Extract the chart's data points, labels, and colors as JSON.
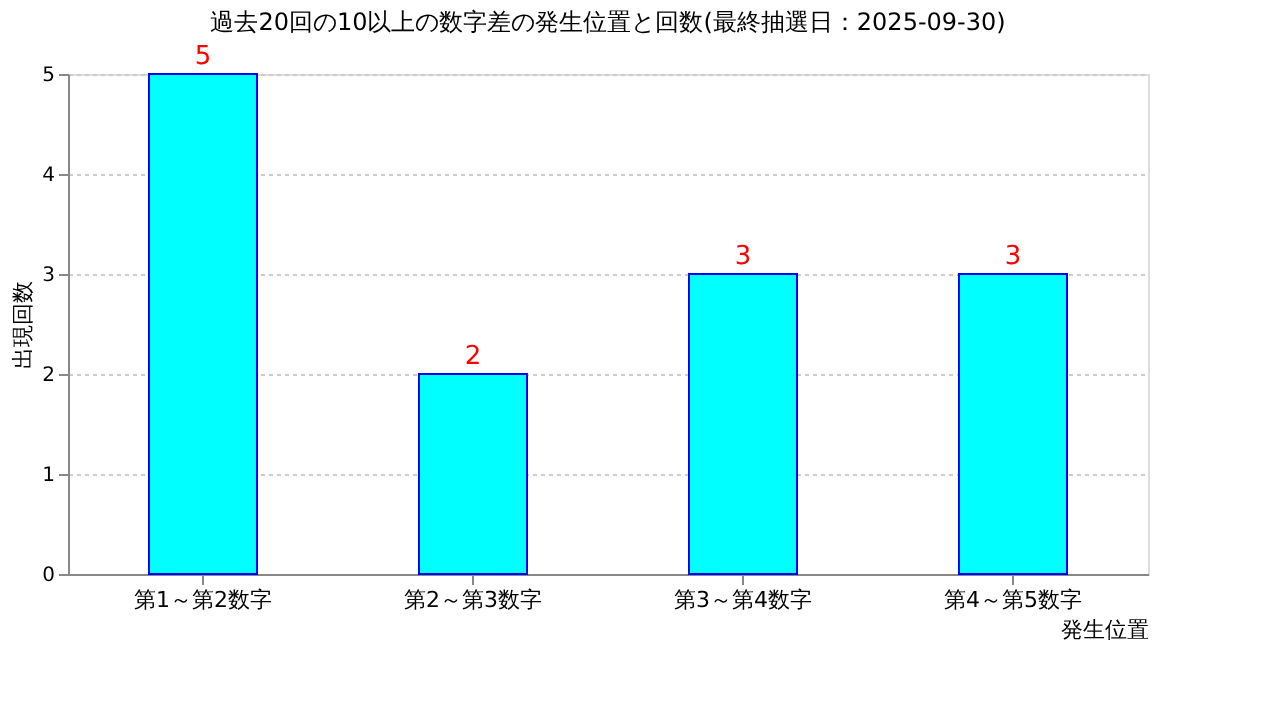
{
  "chart_data": {
    "type": "bar",
    "title": "過去20回の10以上の数字差の発生位置と回数(最終抽選日：2025-09-30)",
    "xlabel": "発生位置",
    "ylabel": "出現回数",
    "categories": [
      "第1～第2数字",
      "第2～第3数字",
      "第3～第4数字",
      "第4～第5数字"
    ],
    "values": [
      5,
      2,
      3,
      3
    ],
    "color": "#00ffff",
    "ylim": [
      0,
      5
    ],
    "yticks": [
      0,
      1,
      2,
      3,
      4,
      5
    ],
    "grid": "y",
    "data_labels": true
  }
}
